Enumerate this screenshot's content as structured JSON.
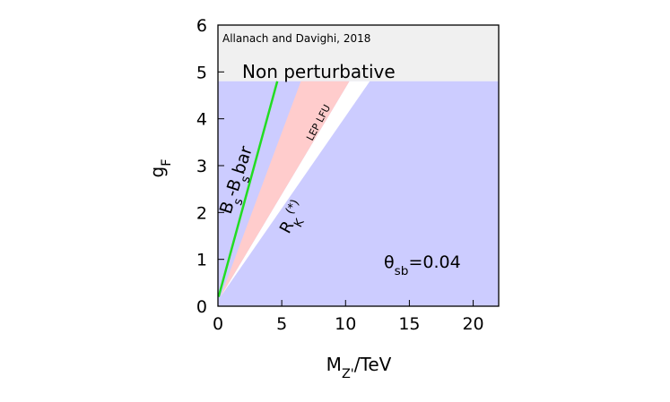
{
  "chart_data": {
    "type": "region",
    "annotation": "Allanach and Davighi, 2018",
    "x_label": [
      {
        "text": "M"
      },
      {
        "text": "Z'",
        "script": "sub"
      },
      {
        "text": "/TeV"
      }
    ],
    "y_label": [
      {
        "text": "g"
      },
      {
        "text": "F",
        "script": "sub"
      }
    ],
    "parameter_label": [
      {
        "text": "θ"
      },
      {
        "text": "sb",
        "script": "sub"
      },
      {
        "text": "=0.04"
      }
    ],
    "xlim": [
      0,
      22
    ],
    "ylim": [
      0,
      6
    ],
    "xticks": [
      0,
      5,
      10,
      15,
      20
    ],
    "yticks": [
      0,
      1,
      2,
      3,
      4,
      5,
      6
    ],
    "regions": [
      {
        "color": "#f0f0f0",
        "x": [
          0,
          22,
          22,
          0
        ],
        "y": [
          4.8,
          4.8,
          6,
          6
        ],
        "label": [
          {
            "text": "Non perturbative"
          }
        ]
      },
      {
        "color": "#ccccff",
        "x": [
          0,
          22,
          22,
          0
        ],
        "y": [
          0,
          0,
          4.8,
          4.8
        ]
      },
      {
        "color": "#ffffff",
        "x": [
          0.2,
          10.3,
          11.9
        ],
        "y": [
          0.2,
          4.8,
          4.8
        ],
        "label": [
          {
            "text": "R"
          },
          {
            "text": "K",
            "script": "sub"
          },
          {
            "text": "(*)",
            "script": "sup"
          }
        ]
      },
      {
        "color": "#ffcccc",
        "x": [
          0.2,
          6.5,
          10.3
        ],
        "y": [
          0.2,
          4.8,
          4.8
        ],
        "label": [
          {
            "text": "LEP LFU"
          }
        ]
      }
    ],
    "lines": [
      {
        "color": "#22dd22",
        "x": [
          0.05,
          4.65
        ],
        "y": [
          0.2,
          4.8
        ],
        "label": [
          {
            "text": "B"
          },
          {
            "text": "s",
            "script": "sub"
          },
          {
            "text": "-B"
          },
          {
            "text": "s",
            "script": "sub"
          },
          {
            "text": "bar"
          }
        ]
      }
    ]
  }
}
